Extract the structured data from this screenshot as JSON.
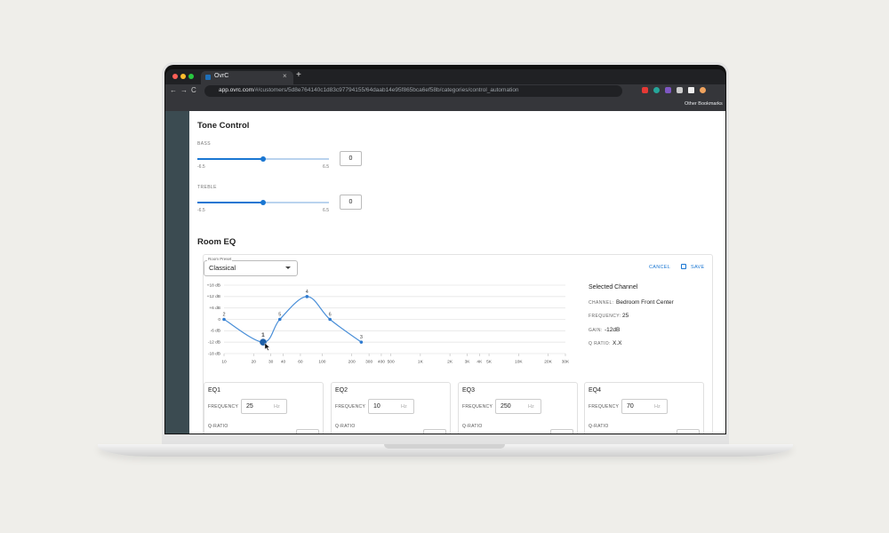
{
  "browser": {
    "tab_title": "OvrC",
    "url_host": "app.ovrc.com",
    "url_path": "/#/customers/5d8e764140c1d83c97794155/64daab14e95f865bca6ef58b/categories/control_automation",
    "bookmarks": "Other Bookmarks"
  },
  "tone_control": {
    "title": "Tone Control",
    "sliders": [
      {
        "label": "BASS",
        "min": -6.5,
        "max": 6.5,
        "value": 0
      },
      {
        "label": "TREBLE",
        "min": -6.5,
        "max": 6.5,
        "value": 0
      }
    ]
  },
  "room_eq": {
    "title": "Room EQ",
    "preset_label": "Room Preset",
    "preset": "Classical",
    "cancel": "CANCEL",
    "save": "SAVE",
    "chart": {
      "xlim": [
        10,
        30000
      ],
      "ylim": [
        -18,
        18
      ],
      "color": "#4a8fd8",
      "grid": true,
      "yticks": [
        {
          "value": 18,
          "label": "+18 dB"
        },
        {
          "value": 12,
          "label": "+12 dB"
        },
        {
          "value": 6,
          "label": "+6 dB"
        },
        0,
        {
          "value": -6,
          "label": "-6 dB"
        },
        {
          "value": -12,
          "label": "-12 dB"
        },
        {
          "value": -18,
          "label": "-18 dB"
        }
      ],
      "xticks": [
        10,
        20,
        30,
        40,
        60,
        100,
        200,
        300,
        400,
        500,
        {
          "value": 1000,
          "label": "1K"
        },
        {
          "value": 2000,
          "label": "2K"
        },
        {
          "value": 3000,
          "label": "3K"
        },
        {
          "value": 4000,
          "label": "4K"
        },
        {
          "value": 5000,
          "label": "5K"
        },
        {
          "value": 10000,
          "label": "10K"
        },
        {
          "value": 20000,
          "label": "20K"
        },
        {
          "value": 30000,
          "label": "30K"
        }
      ],
      "points": [
        {
          "label": "1",
          "freq": 25,
          "gain": -12
        },
        {
          "label": "2",
          "freq": 10,
          "gain": 0
        },
        {
          "label": "3",
          "freq": 250,
          "gain": -12
        },
        {
          "label": "4",
          "freq": 70,
          "gain": 12
        },
        {
          "label": "5",
          "freq": 37,
          "gain": 0
        },
        {
          "label": "6",
          "freq": 120,
          "gain": 0
        }
      ]
    },
    "selected": {
      "title": "Selected Channel",
      "rows": [
        {
          "label": "CHANNEL:",
          "value": "Bedroom Front Center"
        },
        {
          "label": "FREQUENCY:",
          "value": "25"
        },
        {
          "label": "GAIN:",
          "value": "-12dB"
        },
        {
          "label": "Q RATIO:",
          "value": "X.X"
        }
      ]
    },
    "bands": [
      {
        "name": "EQ1",
        "frequency_label": "FREQUENCY",
        "frequency": 25,
        "unit": "Hz",
        "q_label": "Q-RATIO"
      },
      {
        "name": "EQ2",
        "frequency_label": "FREQUENCY",
        "frequency": 10,
        "unit": "Hz",
        "q_label": "Q-RATIO"
      },
      {
        "name": "EQ3",
        "frequency_label": "FREQUENCY",
        "frequency": 250,
        "unit": "Hz",
        "q_label": "Q-RATIO"
      },
      {
        "name": "EQ4",
        "frequency_label": "FREQUENCY",
        "frequency": 70,
        "unit": "Hz",
        "q_label": "Q-RATIO"
      }
    ]
  }
}
